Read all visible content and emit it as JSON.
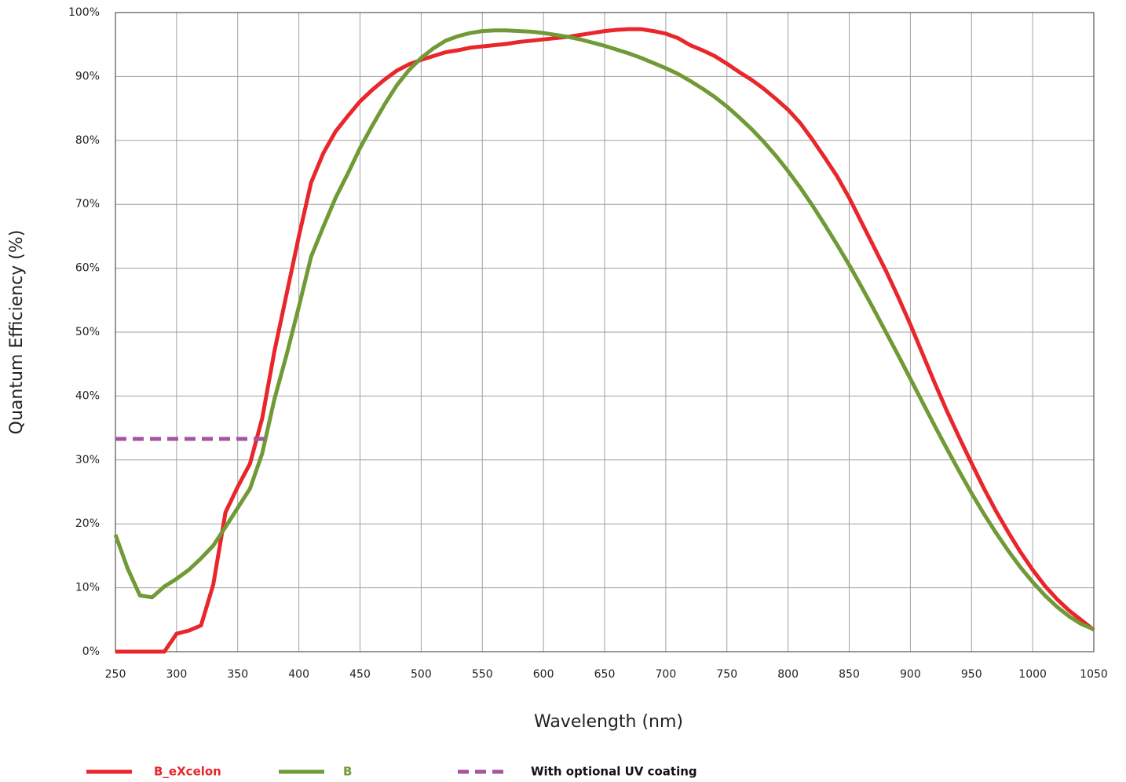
{
  "chart_data": {
    "type": "line",
    "xlabel": "Wavelength (nm)",
    "ylabel": "Quantum Efficiency (%)",
    "xlim": [
      250,
      1050
    ],
    "ylim": [
      0,
      100
    ],
    "xticks": [
      250,
      300,
      350,
      400,
      450,
      500,
      550,
      600,
      650,
      700,
      750,
      800,
      850,
      900,
      950,
      1000,
      1050
    ],
    "yticks": [
      {
        "value": 0,
        "label": "0%"
      },
      {
        "value": 10,
        "label": "10%"
      },
      {
        "value": 20,
        "label": "20%"
      },
      {
        "value": 30,
        "label": "30%"
      },
      {
        "value": 40,
        "label": "40%"
      },
      {
        "value": 50,
        "label": "50%"
      },
      {
        "value": 60,
        "label": "60%"
      },
      {
        "value": 70,
        "label": "70%"
      },
      {
        "value": 80,
        "label": "80%"
      },
      {
        "value": 90,
        "label": "90%"
      },
      {
        "value": 100,
        "label": "100%"
      }
    ],
    "grid": true,
    "legend": "bottom",
    "x": [
      250,
      260,
      270,
      280,
      290,
      300,
      310,
      320,
      330,
      340,
      350,
      360,
      370,
      380,
      390,
      400,
      410,
      420,
      430,
      440,
      450,
      460,
      470,
      480,
      490,
      500,
      510,
      520,
      530,
      540,
      550,
      560,
      570,
      580,
      590,
      600,
      610,
      620,
      630,
      640,
      650,
      660,
      670,
      680,
      690,
      700,
      710,
      720,
      730,
      740,
      750,
      760,
      770,
      780,
      790,
      800,
      810,
      820,
      830,
      840,
      850,
      860,
      870,
      880,
      890,
      900,
      910,
      920,
      930,
      940,
      950,
      960,
      970,
      980,
      990,
      1000,
      1010,
      1020,
      1030,
      1040,
      1050
    ],
    "series": [
      {
        "name": "B_eXcelon",
        "color": "#e8262b",
        "values": [
          0,
          0,
          0,
          0,
          0,
          2.8,
          3.3,
          4.1,
          10.5,
          21.8,
          25.8,
          29.4,
          36.5,
          47,
          56,
          65,
          73.4,
          78,
          81.4,
          83.8,
          86.1,
          87.9,
          89.5,
          90.9,
          91.9,
          92.6,
          93.2,
          93.8,
          94.1,
          94.5,
          94.7,
          94.9,
          95.1,
          95.4,
          95.6,
          95.8,
          96,
          96.2,
          96.5,
          96.8,
          97.1,
          97.3,
          97.4,
          97.4,
          97.1,
          96.7,
          96,
          94.9,
          94.1,
          93.2,
          92,
          90.7,
          89.5,
          88.1,
          86.5,
          84.8,
          82.7,
          80.1,
          77.3,
          74.4,
          71,
          67.2,
          63.4,
          59.6,
          55.5,
          51.2,
          46.6,
          42,
          37.6,
          33.5,
          29.5,
          25.6,
          22,
          18.7,
          15.6,
          12.8,
          10.3,
          8.2,
          6.4,
          4.9,
          3.4
        ]
      },
      {
        "name": "B",
        "color": "#6f9a36",
        "values": [
          18.3,
          13,
          8.8,
          8.5,
          10.2,
          11.4,
          12.8,
          14.6,
          16.6,
          19.5,
          22.5,
          25.5,
          31,
          39.5,
          46.5,
          54,
          61.8,
          66.5,
          71,
          74.8,
          78.8,
          82.3,
          85.6,
          88.6,
          91,
          92.9,
          94.4,
          95.6,
          96.3,
          96.8,
          97.1,
          97.2,
          97.2,
          97.1,
          97,
          96.8,
          96.5,
          96.2,
          95.8,
          95.3,
          94.8,
          94.2,
          93.6,
          92.9,
          92.1,
          91.3,
          90.4,
          89.3,
          88.1,
          86.8,
          85.3,
          83.6,
          81.8,
          79.8,
          77.6,
          75.2,
          72.6,
          69.8,
          66.8,
          63.7,
          60.5,
          57.1,
          53.6,
          50,
          46.4,
          42.7,
          39,
          35.3,
          31.7,
          28.2,
          24.8,
          21.6,
          18.6,
          15.8,
          13.2,
          10.9,
          8.8,
          7,
          5.5,
          4.3,
          3.5
        ]
      },
      {
        "name": "With optional UV coating",
        "color": "#a3559f",
        "dashed": true,
        "x": [
          250,
          375
        ],
        "values": [
          33.3,
          33.3
        ]
      }
    ]
  }
}
